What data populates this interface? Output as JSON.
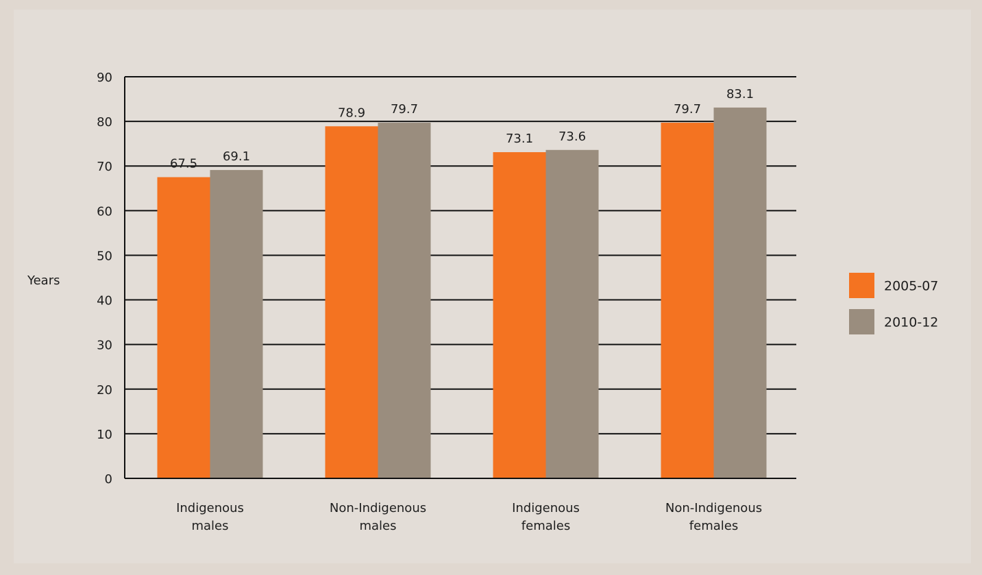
{
  "chart_data": {
    "type": "bar",
    "title": "",
    "xlabel": "",
    "ylabel": "Years",
    "ylim": [
      0,
      90
    ],
    "yticks": [
      0,
      10,
      20,
      30,
      40,
      50,
      60,
      70,
      80,
      90
    ],
    "ytick_labels": [
      "0",
      "10",
      "20",
      "30",
      "40",
      "50",
      "60",
      "70",
      "80",
      "90"
    ],
    "grid": true,
    "legend_position": "right",
    "categories": [
      [
        "Indigenous",
        "males"
      ],
      [
        "Non-Indigenous",
        "males"
      ],
      [
        "Indigenous",
        "females"
      ],
      [
        "Non-Indigenous",
        "females"
      ]
    ],
    "series": [
      {
        "name": "2005-07",
        "color": "#f47321",
        "values": [
          67.5,
          78.9,
          73.1,
          79.7
        ],
        "labels": [
          "67.5",
          "78.9",
          "73.1",
          "79.7"
        ]
      },
      {
        "name": "2010-12",
        "color": "#9a8d7e",
        "values": [
          69.1,
          79.7,
          73.6,
          83.1
        ],
        "labels": [
          "69.1",
          "79.7",
          "73.6",
          "83.1"
        ]
      }
    ]
  }
}
